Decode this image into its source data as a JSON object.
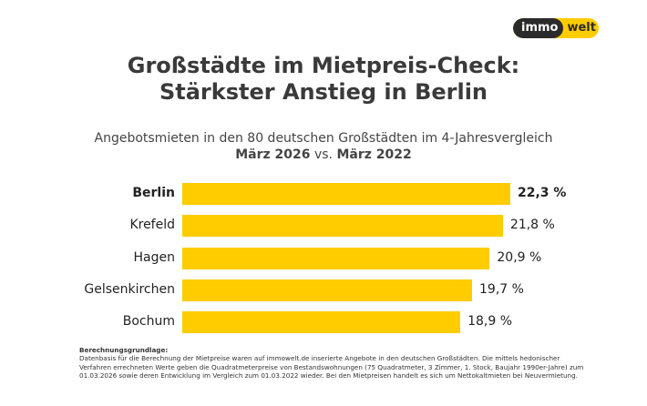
{
  "logo": {
    "left": "immo",
    "right": "welt"
  },
  "title_lines": [
    "Großstädte im Mietpreis-Check:",
    "Stärkster Anstieg in Berlin"
  ],
  "subtitle": {
    "line1": "Angebotsmieten in den 80 deutschen Großstädten im 4-Jahresvergleich",
    "bold1": "März 2026",
    "mid": " vs. ",
    "bold2": "März 2022"
  },
  "colors": {
    "bar": "#ffcc00",
    "text": "#3a3a3a"
  },
  "chart_data": {
    "type": "bar",
    "orientation": "horizontal",
    "categories": [
      "Berlin",
      "Krefeld",
      "Hagen",
      "Gelsenkirchen",
      "Bochum"
    ],
    "values": [
      22.3,
      21.8,
      20.9,
      19.7,
      18.9
    ],
    "data_labels": [
      "22,3 %",
      "21,8 %",
      "20,9 %",
      "19,7 %",
      "18,9 %"
    ],
    "highlighted": "Berlin",
    "xlim": [
      0,
      22.3
    ],
    "grid": false
  },
  "footer": {
    "heading": "Berechnungsgrundlage:",
    "text": "Datenbasis für die Berechnung der Mietpreise waren auf immowelt.de inserierte Angebote in den deutschen Großstädten. Die mittels hedonischer Verfahren errechneten Werte geben die Quadratmeterpreise von Bestandswohnungen (75 Quadratmeter, 3 Zimmer, 1. Stock, Baujahr 1990er-Jahre) zum 01.03.2026 sowie deren Entwicklung im Vergleich zum 01.03.2022 wieder. Bei den Mietpreisen handelt es sich um Nettokaltmieten bei Neuvermietung."
  }
}
